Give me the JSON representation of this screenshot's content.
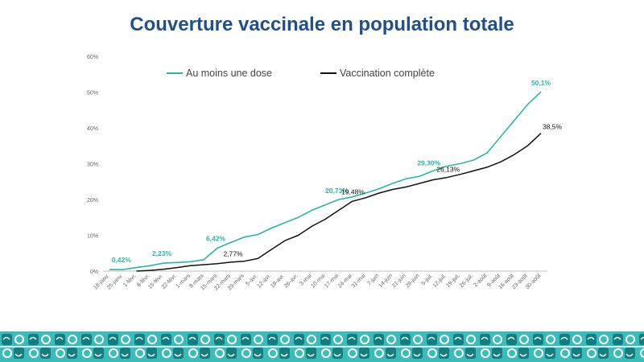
{
  "slide": {
    "title": "Couverture vaccinale en population totale"
  },
  "colors": {
    "title": "#1f4f8f",
    "dose": "#2bb5a5",
    "complete": "#111111",
    "pattern_dark": "#137d80",
    "pattern_light": "#3cbcb8"
  },
  "chart_data": {
    "type": "line",
    "title": "",
    "xlabel": "",
    "ylabel": "",
    "ylim": [
      0,
      60
    ],
    "y_ticks": [
      "0%",
      "10%",
      "20%",
      "30%",
      "40%",
      "50%",
      "60%"
    ],
    "y_tick_values": [
      0,
      10,
      20,
      30,
      40,
      50,
      60
    ],
    "grid": false,
    "legend_position": "top",
    "x_tick_labels": [
      "18-janv.",
      "25-janv.",
      "1-févr.",
      "8-févr.",
      "15-févr.",
      "22-févr.",
      "1-mars",
      "8-mars",
      "15-mars",
      "22-mars",
      "29-mars",
      "5-avr.",
      "12-avr.",
      "19-avr.",
      "26-avr.",
      "3-mai",
      "10-mai",
      "17-mai",
      "24-mai",
      "31-mai",
      "7-juin",
      "14-juin",
      "21-juin",
      "28-juin",
      "5-juil.",
      "12-juil.",
      "19-juil.",
      "26-juil.",
      "2-août",
      "9-août",
      "16-août",
      "23-août",
      "30-août"
    ],
    "series": [
      {
        "name": "Au moins une dose",
        "color": "#2bb5a5",
        "x_week": [
          0,
          1,
          2,
          3,
          4,
          5,
          6,
          7,
          8,
          9,
          10,
          11,
          12,
          13,
          14,
          15,
          16,
          17,
          18,
          19,
          20,
          21,
          22,
          23,
          24,
          25,
          26,
          27,
          28,
          29,
          30,
          31,
          32
        ],
        "values": [
          0.4,
          0.42,
          1.0,
          1.5,
          2.23,
          2.4,
          2.6,
          3.2,
          6.42,
          8.0,
          9.5,
          10.2,
          12.0,
          13.5,
          15.0,
          17.0,
          18.5,
          20.0,
          20.73,
          21.8,
          23.0,
          24.5,
          25.8,
          26.5,
          28.0,
          29.3,
          30.0,
          31.0,
          33.0,
          37.5,
          42.0,
          46.5,
          50.1
        ]
      },
      {
        "name": "Vaccination complète",
        "color": "#111111",
        "x_week": [
          2,
          3,
          4,
          5,
          6,
          7,
          8,
          9,
          10,
          11,
          12,
          13,
          14,
          15,
          16,
          17,
          18,
          19,
          20,
          21,
          22,
          23,
          24,
          25,
          26,
          27,
          28,
          29,
          30,
          31,
          32
        ],
        "values": [
          0.0,
          0.2,
          0.5,
          1.0,
          1.5,
          1.8,
          2.1,
          2.5,
          2.77,
          3.5,
          6.0,
          8.5,
          10.0,
          12.5,
          14.5,
          17.0,
          19.48,
          20.5,
          21.8,
          22.8,
          23.5,
          24.5,
          25.5,
          26.13,
          27.0,
          28.0,
          29.0,
          30.5,
          32.5,
          35.0,
          38.5
        ]
      }
    ],
    "annotations": [
      {
        "series": 0,
        "week": 1,
        "label": "0,42%"
      },
      {
        "series": 0,
        "week": 4,
        "label": "2,23%"
      },
      {
        "series": 0,
        "week": 8,
        "label": "6,42%"
      },
      {
        "series": 0,
        "week": 18,
        "label": "20,73%"
      },
      {
        "series": 0,
        "week": 25,
        "label": "29,30%"
      },
      {
        "series": 0,
        "week": 32,
        "label": "50,1%"
      },
      {
        "series": 1,
        "week": 10,
        "label": "2,77%"
      },
      {
        "series": 1,
        "week": 18,
        "label": "19,48%"
      },
      {
        "series": 1,
        "week": 25,
        "label": "26,13%"
      },
      {
        "series": 1,
        "week": 32,
        "label": "38,5%"
      }
    ]
  }
}
